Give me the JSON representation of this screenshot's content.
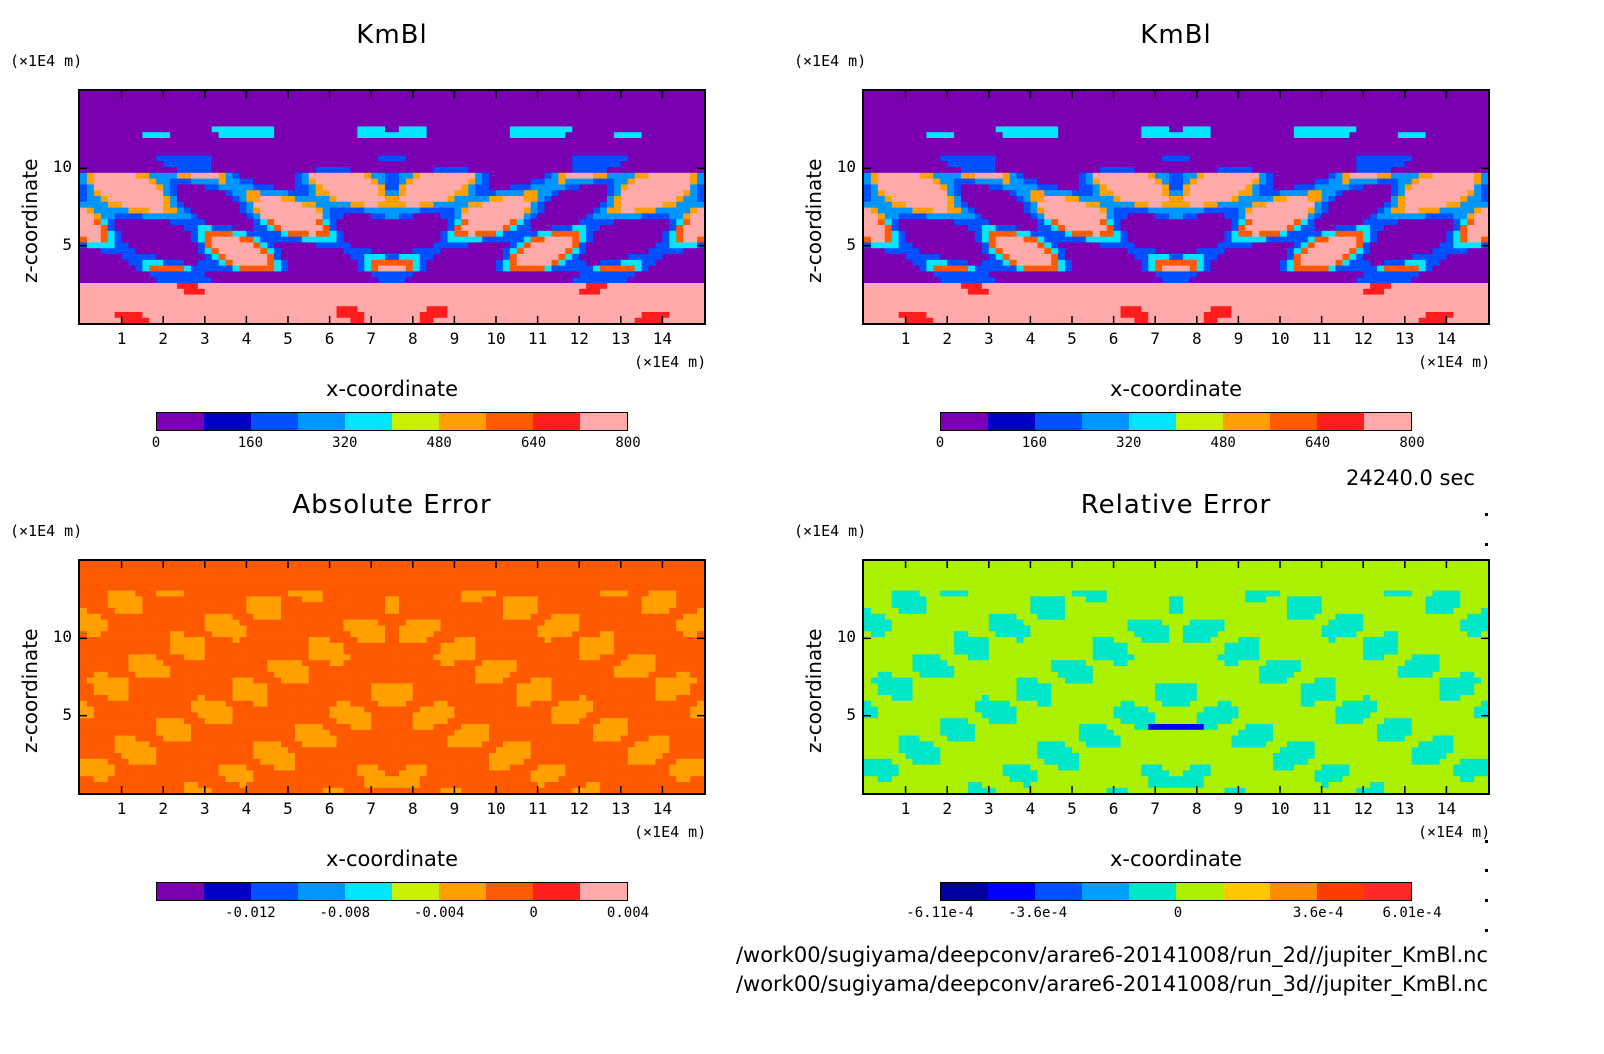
{
  "timestamp": "24240.0 sec",
  "files": [
    "/work00/sugiyama/deepconv/arare6-20141008/run_2d//jupiter_KmBl.nc",
    "/work00/sugiyama/deepconv/arare6-20141008/run_3d//jupiter_KmBl.nc"
  ],
  "chart_data": [
    {
      "type": "heatmap",
      "title": "KmBl",
      "xlabel": "x-coordinate",
      "ylabel": "z-coordinate",
      "x_unit": "(×1E4 m)",
      "z_unit": "(×1E4 m)",
      "xticks": [
        "1",
        "2",
        "3",
        "4",
        "5",
        "6",
        "7",
        "8",
        "9",
        "10",
        "11",
        "12",
        "13",
        "14"
      ],
      "yticks": [
        "5",
        "10"
      ],
      "xlim": [
        0,
        15
      ],
      "ylim": [
        0,
        15
      ],
      "colorbar": {
        "colors": [
          "#7b00b4",
          "#0000c8",
          "#0050ff",
          "#0096ff",
          "#00e6ff",
          "#c8f000",
          "#ffa000",
          "#ff5a00",
          "#ff1e1e",
          "#ffaaaa"
        ],
        "tick_labels": [
          "0",
          "160",
          "320",
          "480",
          "640",
          "800"
        ],
        "range": [
          0,
          800
        ]
      },
      "field": "kmbl"
    },
    {
      "type": "heatmap",
      "title": "KmBl",
      "xlabel": "x-coordinate",
      "ylabel": "z-coordinate",
      "x_unit": "(×1E4 m)",
      "z_unit": "(×1E4 m)",
      "xticks": [
        "1",
        "2",
        "3",
        "4",
        "5",
        "6",
        "7",
        "8",
        "9",
        "10",
        "11",
        "12",
        "13",
        "14"
      ],
      "yticks": [
        "5",
        "10"
      ],
      "xlim": [
        0,
        15
      ],
      "ylim": [
        0,
        15
      ],
      "colorbar": {
        "colors": [
          "#7b00b4",
          "#0000c8",
          "#0050ff",
          "#0096ff",
          "#00e6ff",
          "#c8f000",
          "#ffa000",
          "#ff5a00",
          "#ff1e1e",
          "#ffaaaa"
        ],
        "tick_labels": [
          "0",
          "160",
          "320",
          "480",
          "640",
          "800"
        ],
        "range": [
          0,
          800
        ]
      },
      "field": "kmbl"
    },
    {
      "type": "heatmap",
      "title": "Absolute Error",
      "xlabel": "x-coordinate",
      "ylabel": "z-coordinate",
      "x_unit": "(×1E4 m)",
      "z_unit": "(×1E4 m)",
      "xticks": [
        "1",
        "2",
        "3",
        "4",
        "5",
        "6",
        "7",
        "8",
        "9",
        "10",
        "11",
        "12",
        "13",
        "14"
      ],
      "yticks": [
        "5",
        "10"
      ],
      "xlim": [
        0,
        15
      ],
      "ylim": [
        0,
        15
      ],
      "colorbar": {
        "colors": [
          "#7b00b4",
          "#0000c8",
          "#0050ff",
          "#0096ff",
          "#00e6ff",
          "#c8f000",
          "#ffa000",
          "#ff5a00",
          "#ff1e1e",
          "#ffaaaa"
        ],
        "tick_labels": [
          "-0.012",
          "-0.008",
          "-0.004",
          "0",
          "0.004"
        ],
        "range": [
          -0.016,
          0.004
        ]
      },
      "field": "abserr"
    },
    {
      "type": "heatmap",
      "title": "Relative Error",
      "xlabel": "x-coordinate",
      "ylabel": "z-coordinate",
      "x_unit": "(×1E4 m)",
      "z_unit": "(×1E4 m)",
      "xticks": [
        "1",
        "2",
        "3",
        "4",
        "5",
        "6",
        "7",
        "8",
        "9",
        "10",
        "11",
        "12",
        "13",
        "14"
      ],
      "yticks": [
        "5",
        "10"
      ],
      "xlim": [
        0,
        15
      ],
      "ylim": [
        0,
        15
      ],
      "colorbar": {
        "colors": [
          "#0000a0",
          "#0000ff",
          "#0050ff",
          "#00a0ff",
          "#00e6c8",
          "#aaf000",
          "#ffc800",
          "#ff8c00",
          "#ff3c00",
          "#ff2828"
        ],
        "tick_labels": [
          "-6.11e-4",
          "-3.6e-4",
          "0",
          "3.6e-4",
          "6.01e-4"
        ],
        "range": [
          -0.000611,
          0.000601
        ]
      },
      "field": "relerr"
    }
  ]
}
